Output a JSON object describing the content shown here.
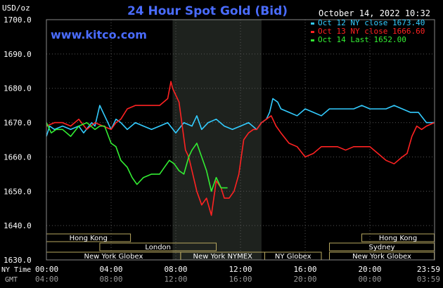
{
  "chart_data": {
    "type": "line",
    "title": "24 Hour Spot Gold (Bid)",
    "website": "www.kitco.com",
    "timestamp": "October 14, 2022 10:32",
    "ylabel": "USD/oz",
    "ylim": [
      1630,
      1700
    ],
    "y_ticks": [
      "1700.0",
      "1690.0",
      "1680.0",
      "1670.0",
      "1660.0",
      "1650.0",
      "1640.0",
      "1630.0"
    ],
    "xlim": [
      0,
      24
    ],
    "x_ticks_ny": [
      "00:00",
      "04:00",
      "08:00",
      "12:00",
      "16:00",
      "20:00",
      "23:59"
    ],
    "x_ticks_gmt": [
      "04:00",
      "08:00",
      "12:00",
      "16:00",
      "20:00",
      "00:00",
      "03:59"
    ],
    "x_axis_ny_label": "NY Time",
    "x_axis_gmt_label": "GMT",
    "grid": true,
    "legend_placement": "top-right",
    "highlight_band": [
      7.8,
      13.3
    ],
    "sessions": [
      {
        "label": "Hong Kong",
        "start": 0,
        "end": 5.2,
        "row": 0
      },
      {
        "label": "Hong Kong",
        "start": 19.5,
        "end": 23.98,
        "row": 0
      },
      {
        "label": "London",
        "start": 3.3,
        "end": 10.5,
        "row": 1
      },
      {
        "label": "Sydney",
        "start": 17.5,
        "end": 23.98,
        "row": 1
      },
      {
        "label": "New York Globex",
        "start": 0,
        "end": 8.3,
        "row": 2
      },
      {
        "label": "New York NYMEX",
        "start": 8.3,
        "end": 13.5,
        "row": 2
      },
      {
        "label": "NY Globex",
        "start": 13.5,
        "end": 17,
        "row": 2
      },
      {
        "label": "New York Globex",
        "start": 17.5,
        "end": 23.98,
        "row": 2
      }
    ],
    "series": [
      {
        "name": "Oct 12 NY close 1673.40",
        "color": "#33ccff",
        "x": [
          0,
          0.2,
          0.5,
          1,
          1.5,
          2,
          2.3,
          2.8,
          3,
          3.3,
          3.6,
          4,
          4.3,
          4.6,
          5,
          5.5,
          6,
          6.5,
          7,
          7.5,
          8,
          8.5,
          9,
          9.3,
          9.6,
          10,
          10.5,
          11,
          11.5,
          12,
          12.5,
          13,
          13.3,
          13.6,
          13.8,
          14,
          14.3,
          14.5,
          15,
          15.5,
          16,
          16.5,
          17,
          17.5,
          18,
          18.5,
          19,
          19.5,
          20,
          20.5,
          21,
          21.5,
          22,
          22.5,
          23,
          23.5,
          23.98
        ],
        "y": [
          1666,
          1669,
          1668,
          1669,
          1668,
          1669,
          1667,
          1670,
          1669,
          1675,
          1672,
          1668,
          1671,
          1670,
          1668,
          1670,
          1669,
          1668,
          1669,
          1670,
          1667,
          1670,
          1669,
          1672,
          1668,
          1670,
          1671,
          1669,
          1668,
          1669,
          1670,
          1668,
          1670,
          1671,
          1673,
          1677,
          1676,
          1674,
          1673,
          1672,
          1674,
          1673,
          1672,
          1674,
          1674,
          1674,
          1674,
          1675,
          1674,
          1674,
          1674,
          1675,
          1674,
          1673,
          1673,
          1670,
          1670
        ]
      },
      {
        "name": "Oct 13 NY close 1666.60",
        "color": "#ff2222",
        "x": [
          0,
          0.5,
          1,
          1.5,
          2,
          2.5,
          3,
          3.5,
          4,
          4.3,
          4.6,
          5,
          5.5,
          6,
          6.5,
          7,
          7.5,
          7.7,
          7.8,
          8,
          8.2,
          8.4,
          8.6,
          8.8,
          9,
          9.3,
          9.6,
          9.9,
          10.2,
          10.5,
          10.8,
          11,
          11.3,
          11.6,
          11.9,
          12.2,
          12.5,
          12.8,
          13,
          13.3,
          13.6,
          13.9,
          14.2,
          14.5,
          15,
          15.5,
          16,
          16.5,
          17,
          17.5,
          18,
          18.5,
          19,
          19.5,
          20,
          20.5,
          21,
          21.5,
          22,
          22.3,
          22.6,
          22.9,
          23.2,
          23.5,
          23.98
        ],
        "y": [
          1669,
          1670,
          1670,
          1669,
          1671,
          1668,
          1670,
          1669,
          1668,
          1670,
          1671,
          1674,
          1675,
          1675,
          1675,
          1675,
          1677,
          1682,
          1680,
          1678,
          1676,
          1669,
          1662,
          1660,
          1656,
          1650,
          1646,
          1648,
          1643,
          1653,
          1651,
          1648,
          1648,
          1650,
          1655,
          1665,
          1667,
          1668,
          1668,
          1670,
          1671,
          1672,
          1669,
          1667,
          1664,
          1663,
          1660,
          1661,
          1663,
          1663,
          1663,
          1662,
          1663,
          1663,
          1663,
          1661,
          1659,
          1658,
          1660,
          1661,
          1666,
          1669,
          1668,
          1669,
          1670
        ]
      },
      {
        "name": "Oct 14 Last 1652.00",
        "color": "#33ee33",
        "x": [
          0,
          0.3,
          0.6,
          1,
          1.5,
          2,
          2.5,
          3,
          3.3,
          3.6,
          4,
          4.3,
          4.6,
          5,
          5.3,
          5.6,
          6,
          6.5,
          7,
          7.3,
          7.6,
          7.9,
          8.2,
          8.5,
          8.8,
          9,
          9.3,
          9.6,
          9.9,
          10.2,
          10.5,
          10.8,
          11,
          11.2
        ],
        "y": [
          1670,
          1667,
          1668,
          1668,
          1666,
          1669,
          1670,
          1668,
          1669,
          1669,
          1664,
          1663,
          1659,
          1657,
          1654,
          1652,
          1654,
          1655,
          1655,
          1657,
          1659,
          1658,
          1656,
          1655,
          1660,
          1662,
          1664,
          1660,
          1656,
          1650,
          1654,
          1651,
          1651,
          1651
        ]
      }
    ]
  }
}
